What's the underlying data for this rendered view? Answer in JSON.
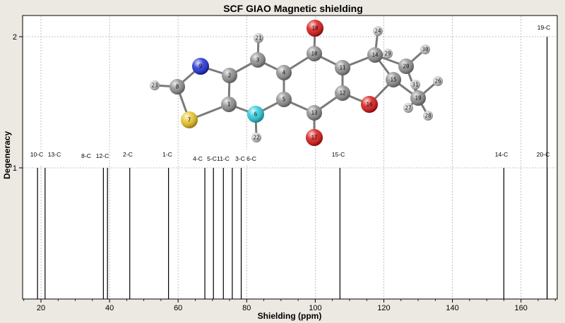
{
  "chart_data": {
    "type": "bar",
    "title": "SCF GIAO Magnetic shielding",
    "xlabel": "Shielding (ppm)",
    "ylabel": "Degeneracy",
    "xlim": [
      15,
      172
    ],
    "ylim": [
      0,
      2.2
    ],
    "xticks": [
      20,
      40,
      60,
      80,
      100,
      120,
      140,
      160
    ],
    "yticks": [
      1,
      2
    ],
    "grid": true,
    "peaks": [
      {
        "label": "10-C",
        "x": 19.0,
        "y": 1
      },
      {
        "label": "13-C",
        "x": 21.2,
        "y": 1
      },
      {
        "label": "8-C",
        "x": 38.2,
        "y": 1
      },
      {
        "label": "12-C",
        "x": 39.4,
        "y": 1
      },
      {
        "label": "2-C",
        "x": 45.9,
        "y": 1
      },
      {
        "label": "1-C",
        "x": 57.2,
        "y": 1
      },
      {
        "label": "4-C",
        "x": 67.8,
        "y": 1
      },
      {
        "label": "5-C",
        "x": 70.3,
        "y": 1
      },
      {
        "label": "11-C",
        "x": 73.2,
        "y": 1
      },
      {
        "label": "3-C",
        "x": 75.8,
        "y": 1
      },
      {
        "label": "6-C",
        "x": 78.4,
        "y": 1
      },
      {
        "label": "15-C",
        "x": 107.2,
        "y": 1
      },
      {
        "label": "14-C",
        "x": 155.0,
        "y": 1
      },
      {
        "label": "20-C",
        "x": 167.6,
        "y": 1
      },
      {
        "label": "19-C",
        "x": 167.6,
        "y": 2
      }
    ]
  },
  "molecule": {
    "atoms": [
      {
        "id": "1",
        "color": "#8a8a8a"
      },
      {
        "id": "2",
        "color": "#8a8a8a"
      },
      {
        "id": "3",
        "color": "#8a8a8a"
      },
      {
        "id": "4",
        "color": "#8a8a8a"
      },
      {
        "id": "5",
        "color": "#8a8a8a"
      },
      {
        "id": "6",
        "color": "#22c8d8"
      },
      {
        "id": "7",
        "color": "#e8c020"
      },
      {
        "id": "8",
        "color": "#8a8a8a"
      },
      {
        "id": "9",
        "color": "#1a2ad0"
      },
      {
        "id": "10",
        "color": "#8a8a8a"
      },
      {
        "id": "11",
        "color": "#8a8a8a"
      },
      {
        "id": "12",
        "color": "#8a8a8a"
      },
      {
        "id": "13",
        "color": "#8a8a8a"
      },
      {
        "id": "14",
        "color": "#8a8a8a"
      },
      {
        "id": "15",
        "color": "#8a8a8a"
      },
      {
        "id": "16",
        "color": "#d81010"
      },
      {
        "id": "17",
        "color": "#d81010"
      },
      {
        "id": "18",
        "color": "#d81010"
      },
      {
        "id": "19",
        "color": "#8a8a8a"
      },
      {
        "id": "20",
        "color": "#8a8a8a"
      },
      {
        "id": "21",
        "color": "#c8c8c8"
      },
      {
        "id": "22",
        "color": "#c8c8c8"
      },
      {
        "id": "23",
        "color": "#c8c8c8"
      },
      {
        "id": "24",
        "color": "#c8c8c8"
      },
      {
        "id": "26",
        "color": "#c8c8c8"
      },
      {
        "id": "27",
        "color": "#c8c8c8"
      },
      {
        "id": "28",
        "color": "#c8c8c8"
      },
      {
        "id": "29",
        "color": "#c8c8c8"
      },
      {
        "id": "30",
        "color": "#c8c8c8"
      },
      {
        "id": "31",
        "color": "#c8c8c8"
      }
    ]
  }
}
